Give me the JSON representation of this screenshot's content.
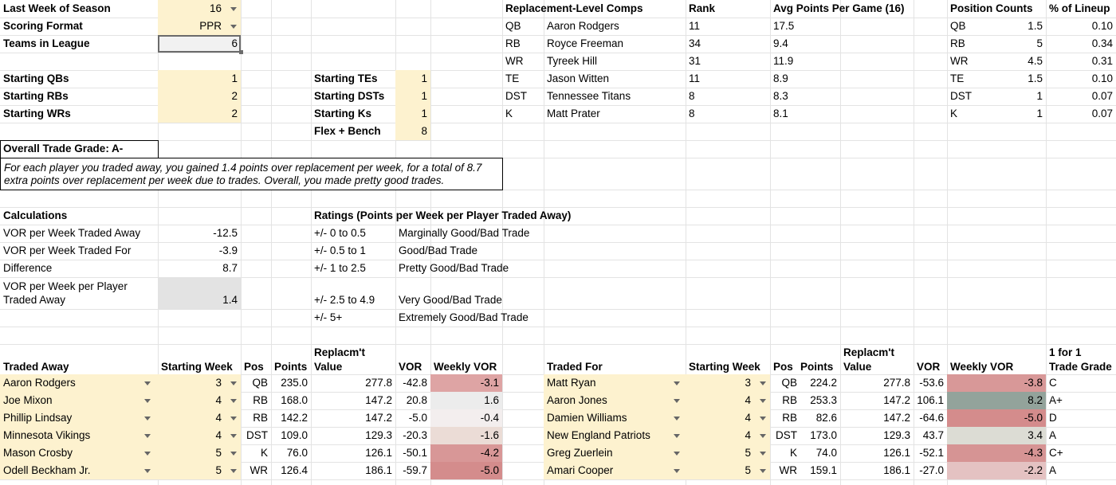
{
  "settings": {
    "last_week_label": "Last Week of Season",
    "last_week_value": "16",
    "scoring_label": "Scoring Format",
    "scoring_value": "PPR",
    "teams_label": "Teams in League",
    "teams_value": "6",
    "qbs_label": "Starting QBs",
    "qbs_value": "1",
    "rbs_label": "Starting RBs",
    "rbs_value": "2",
    "wrs_label": "Starting WRs",
    "wrs_value": "2",
    "tes_label": "Starting TEs",
    "tes_value": "1",
    "dsts_label": "Starting DSTs",
    "dsts_value": "1",
    "ks_label": "Starting Ks",
    "ks_value": "1",
    "flex_label": "Flex + Bench",
    "flex_value": "8"
  },
  "comps": {
    "headers": {
      "comps": "Replacement-Level Comps",
      "rank": "Rank",
      "avg": "Avg Points Per Game (16)"
    },
    "rows": [
      {
        "pos": "QB",
        "name": "Aaron Rodgers",
        "rank": "11",
        "avg": "17.5"
      },
      {
        "pos": "RB",
        "name": "Royce Freeman",
        "rank": "34",
        "avg": "9.4"
      },
      {
        "pos": "WR",
        "name": "Tyreek Hill",
        "rank": "31",
        "avg": "11.9"
      },
      {
        "pos": "TE",
        "name": "Jason Witten",
        "rank": "11",
        "avg": "8.9"
      },
      {
        "pos": "DST",
        "name": "Tennessee Titans",
        "rank": "8",
        "avg": "8.3"
      },
      {
        "pos": "K",
        "name": "Matt Prater",
        "rank": "8",
        "avg": "8.1"
      }
    ]
  },
  "counts": {
    "headers": {
      "counts": "Position Counts",
      "pct": "% of Lineup"
    },
    "rows": [
      {
        "pos": "QB",
        "count": "1.5",
        "pct": "0.10"
      },
      {
        "pos": "RB",
        "count": "5",
        "pct": "0.34"
      },
      {
        "pos": "WR",
        "count": "4.5",
        "pct": "0.31"
      },
      {
        "pos": "TE",
        "count": "1.5",
        "pct": "0.10"
      },
      {
        "pos": "DST",
        "count": "1",
        "pct": "0.07"
      },
      {
        "pos": "K",
        "count": "1",
        "pct": "0.07"
      }
    ]
  },
  "grade": {
    "title": "Overall Trade Grade: A-",
    "line1": "For each player you traded away, you gained 1.4 points over replacement per week, for a total of 8.7",
    "line2": "extra points over replacement per week due to trades. Overall, you made pretty good trades."
  },
  "calc": {
    "title": "Calculations",
    "r1_label": "VOR per Week Traded Away",
    "r1_value": "-12.5",
    "r2_label": "VOR per Week Traded For",
    "r2_value": "-3.9",
    "r3_label": "Difference",
    "r3_value": "8.7",
    "r4_label1": "VOR per Week per Player",
    "r4_label2": "Traded Away",
    "r4_value": "1.4"
  },
  "ratings": {
    "title": "Ratings (Points per Week per Player Traded Away)",
    "rows": [
      {
        "range": "+/- 0 to 0.5",
        "desc": "Marginally Good/Bad Trade"
      },
      {
        "range": "+/- 0.5 to 1",
        "desc": "Good/Bad Trade"
      },
      {
        "range": "+/- 1 to 2.5",
        "desc": "Pretty Good/Bad Trade"
      },
      {
        "range": "+/- 2.5 to 4.9",
        "desc": "Very Good/Bad Trade"
      },
      {
        "range": "+/- 5+",
        "desc": "Extremely Good/Bad Trade"
      }
    ]
  },
  "trades": {
    "headers": {
      "away": "Traded Away",
      "week": "Starting Week",
      "pos": "Pos",
      "points": "Points",
      "repl1": "Replacm't",
      "repl2": "Value",
      "vor": "VOR",
      "weekly": "Weekly VOR",
      "for": "Traded For",
      "grade1": "1 for 1",
      "grade2": "Trade Grade"
    },
    "away": [
      {
        "name": "Aaron Rodgers",
        "week": "3",
        "pos": "QB",
        "points": "235.0",
        "repl": "277.8",
        "vor": "-42.8",
        "weekly": "-3.1",
        "color": "#dea4a4"
      },
      {
        "name": "Joe Mixon",
        "week": "4",
        "pos": "RB",
        "points": "168.0",
        "repl": "147.2",
        "vor": "20.8",
        "weekly": "1.6",
        "color": "#ececec"
      },
      {
        "name": "Phillip Lindsay",
        "week": "4",
        "pos": "RB",
        "points": "142.2",
        "repl": "147.2",
        "vor": "-5.0",
        "weekly": "-0.4",
        "color": "#f3eeee"
      },
      {
        "name": "Minnesota Vikings",
        "week": "4",
        "pos": "DST",
        "points": "109.0",
        "repl": "129.3",
        "vor": "-20.3",
        "weekly": "-1.6",
        "color": "#ebdcd6"
      },
      {
        "name": "Mason Crosby",
        "week": "5",
        "pos": "K",
        "points": "76.0",
        "repl": "126.1",
        "vor": "-50.1",
        "weekly": "-4.2",
        "color": "#d89797"
      },
      {
        "name": "Odell Beckham Jr.",
        "week": "5",
        "pos": "WR",
        "points": "126.4",
        "repl": "186.1",
        "vor": "-59.7",
        "weekly": "-5.0",
        "color": "#d48c8c"
      }
    ],
    "for": [
      {
        "name": "Matt Ryan",
        "week": "3",
        "pos": "QB",
        "points": "224.2",
        "repl": "277.8",
        "vor": "-53.6",
        "weekly": "-3.8",
        "color": "#d89898",
        "grade": "C"
      },
      {
        "name": "Aaron Jones",
        "week": "4",
        "pos": "RB",
        "points": "253.3",
        "repl": "147.2",
        "vor": "106.1",
        "weekly": "8.2",
        "color": "#93a39b",
        "grade": "A+"
      },
      {
        "name": "Damien Williams",
        "week": "4",
        "pos": "RB",
        "points": "82.6",
        "repl": "147.2",
        "vor": "-64.6",
        "weekly": "-5.0",
        "color": "#d48c8c",
        "grade": "D"
      },
      {
        "name": "New England Patriots",
        "week": "4",
        "pos": "DST",
        "points": "173.0",
        "repl": "129.3",
        "vor": "43.7",
        "weekly": "3.4",
        "color": "#dcdcd4",
        "grade": "A"
      },
      {
        "name": "Greg Zuerlein",
        "week": "5",
        "pos": "K",
        "points": "74.0",
        "repl": "126.1",
        "vor": "-52.1",
        "weekly": "-4.3",
        "color": "#d69494",
        "grade": "C+"
      },
      {
        "name": "Amari Cooper",
        "week": "5",
        "pos": "WR",
        "points": "159.1",
        "repl": "186.1",
        "vor": "-27.0",
        "weekly": "-2.2",
        "color": "#e4c2c2",
        "grade": "A"
      }
    ]
  }
}
